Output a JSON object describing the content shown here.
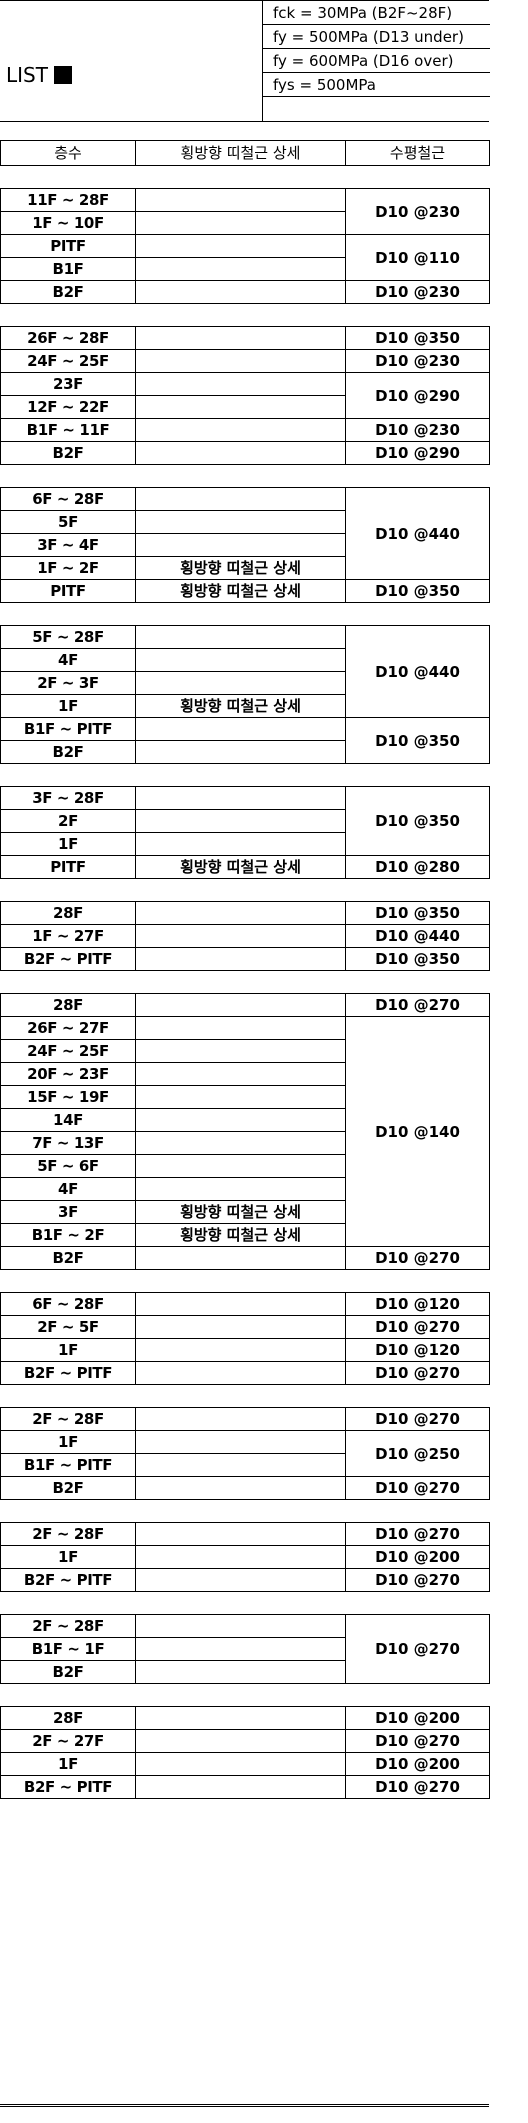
{
  "title": "LIST",
  "specs": [
    "fck = 30MPa (B2F~28F)",
    "fy = 500MPa (D13 under)",
    "fy = 600MPa (D16 over)",
    "fys = 500MPa"
  ],
  "headers": [
    "층수",
    "횡방향 띠철근 상세",
    "수평철근"
  ],
  "groups": [
    {
      "rows": [
        {
          "floor": "11F ~ 28F",
          "detail": "",
          "rebar": "D10 @230",
          "span": 2
        },
        {
          "floor": "1F ~ 10F",
          "detail": ""
        },
        {
          "floor": "PITF",
          "detail": "",
          "rebar": "D10 @110",
          "span": 2
        },
        {
          "floor": "B1F",
          "detail": ""
        },
        {
          "floor": "B2F",
          "detail": "",
          "rebar": "D10 @230",
          "span": 1
        }
      ]
    },
    {
      "rows": [
        {
          "floor": "26F ~ 28F",
          "detail": "",
          "rebar": "D10 @350",
          "span": 1
        },
        {
          "floor": "24F ~ 25F",
          "detail": "",
          "rebar": "D10 @230",
          "span": 1
        },
        {
          "floor": "23F",
          "detail": "",
          "rebar": "D10 @290",
          "span": 2
        },
        {
          "floor": "12F ~ 22F",
          "detail": ""
        },
        {
          "floor": "B1F ~ 11F",
          "detail": "",
          "rebar": "D10 @230",
          "span": 1
        },
        {
          "floor": "B2F",
          "detail": "",
          "rebar": "D10 @290",
          "span": 1
        }
      ]
    },
    {
      "rows": [
        {
          "floor": "6F ~ 28F",
          "detail": "",
          "rebar": "D10 @440",
          "span": 4
        },
        {
          "floor": "5F",
          "detail": ""
        },
        {
          "floor": "3F ~ 4F",
          "detail": ""
        },
        {
          "floor": "1F ~ 2F",
          "detail": "횡방향 띠철근 상세"
        },
        {
          "floor": "PITF",
          "detail": "횡방향 띠철근 상세",
          "rebar": "D10 @350",
          "span": 1
        }
      ]
    },
    {
      "rows": [
        {
          "floor": "5F ~ 28F",
          "detail": "",
          "rebar": "D10 @440",
          "span": 4
        },
        {
          "floor": "4F",
          "detail": ""
        },
        {
          "floor": "2F ~ 3F",
          "detail": ""
        },
        {
          "floor": "1F",
          "detail": "횡방향 띠철근 상세"
        },
        {
          "floor": "B1F ~ PITF",
          "detail": "",
          "rebar": "D10 @350",
          "span": 2
        },
        {
          "floor": "B2F",
          "detail": ""
        }
      ]
    },
    {
      "rows": [
        {
          "floor": "3F ~ 28F",
          "detail": "",
          "rebar": "D10 @350",
          "span": 3
        },
        {
          "floor": "2F",
          "detail": ""
        },
        {
          "floor": "1F",
          "detail": ""
        },
        {
          "floor": "PITF",
          "detail": "횡방향 띠철근 상세",
          "rebar": "D10 @280",
          "span": 1
        }
      ]
    },
    {
      "rows": [
        {
          "floor": "28F",
          "detail": "",
          "rebar": "D10 @350",
          "span": 1
        },
        {
          "floor": "1F ~ 27F",
          "detail": "",
          "rebar": "D10 @440",
          "span": 1
        },
        {
          "floor": "B2F ~ PITF",
          "detail": "",
          "rebar": "D10 @350",
          "span": 1
        }
      ]
    },
    {
      "rows": [
        {
          "floor": "28F",
          "detail": "",
          "rebar": "D10 @270",
          "span": 1
        },
        {
          "floor": "26F ~ 27F",
          "detail": "",
          "rebar": "D10 @140",
          "span": 10
        },
        {
          "floor": "24F ~ 25F",
          "detail": ""
        },
        {
          "floor": "20F ~ 23F",
          "detail": ""
        },
        {
          "floor": "15F ~ 19F",
          "detail": ""
        },
        {
          "floor": "14F",
          "detail": ""
        },
        {
          "floor": "7F ~ 13F",
          "detail": ""
        },
        {
          "floor": "5F ~ 6F",
          "detail": ""
        },
        {
          "floor": "4F",
          "detail": ""
        },
        {
          "floor": "3F",
          "detail": "횡방향 띠철근 상세"
        },
        {
          "floor": "B1F ~ 2F",
          "detail": "횡방향 띠철근 상세"
        },
        {
          "floor": "B2F",
          "detail": "",
          "rebar": "D10 @270",
          "span": 1
        }
      ]
    },
    {
      "rows": [
        {
          "floor": "6F ~ 28F",
          "detail": "",
          "rebar": "D10 @120",
          "span": 1
        },
        {
          "floor": "2F ~ 5F",
          "detail": "",
          "rebar": "D10 @270",
          "span": 1
        },
        {
          "floor": "1F",
          "detail": "",
          "rebar": "D10 @120",
          "span": 1
        },
        {
          "floor": "B2F ~ PITF",
          "detail": "",
          "rebar": "D10 @270",
          "span": 1
        }
      ]
    },
    {
      "rows": [
        {
          "floor": "2F ~ 28F",
          "detail": "",
          "rebar": "D10 @270",
          "span": 1
        },
        {
          "floor": "1F",
          "detail": "",
          "rebar": "D10 @250",
          "span": 2
        },
        {
          "floor": "B1F ~ PITF",
          "detail": ""
        },
        {
          "floor": "B2F",
          "detail": "",
          "rebar": "D10 @270",
          "span": 1
        }
      ]
    },
    {
      "rows": [
        {
          "floor": "2F ~ 28F",
          "detail": "",
          "rebar": "D10 @270",
          "span": 1
        },
        {
          "floor": "1F",
          "detail": "",
          "rebar": "D10 @200",
          "span": 1
        },
        {
          "floor": "B2F ~ PITF",
          "detail": "",
          "rebar": "D10 @270",
          "span": 1
        }
      ]
    },
    {
      "rows": [
        {
          "floor": "2F ~ 28F",
          "detail": "",
          "rebar": "D10 @270",
          "span": 3
        },
        {
          "floor": "B1F ~ 1F",
          "detail": ""
        },
        {
          "floor": "B2F",
          "detail": ""
        }
      ]
    },
    {
      "rows": [
        {
          "floor": "28F",
          "detail": "",
          "rebar": "D10 @200",
          "span": 1
        },
        {
          "floor": "2F ~ 27F",
          "detail": "",
          "rebar": "D10 @270",
          "span": 1
        },
        {
          "floor": "1F",
          "detail": "",
          "rebar": "D10 @200",
          "span": 1
        },
        {
          "floor": "B2F ~ PITF",
          "detail": "",
          "rebar": "D10 @270",
          "span": 1
        }
      ]
    }
  ]
}
